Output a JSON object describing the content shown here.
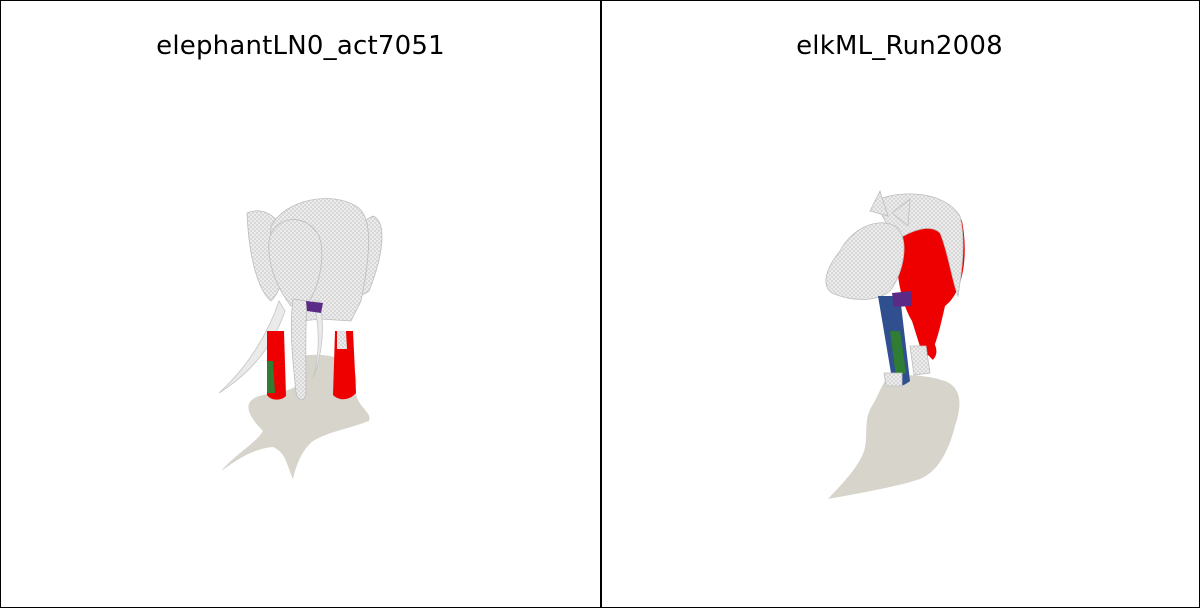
{
  "panels": [
    {
      "title": "elephantLN0_act7051",
      "subject": "elephant-model"
    },
    {
      "title": "elkML_Run2008",
      "subject": "elk-model"
    }
  ],
  "colors": {
    "mesh": "#e6e6e6",
    "mesh_line": "#bdbdbd",
    "shadow": "#d7d4cc",
    "highlight_red": "#ee0000",
    "highlight_green": "#2e7d32",
    "highlight_blue": "#2f4f8f",
    "highlight_purple": "#5b2a86"
  }
}
